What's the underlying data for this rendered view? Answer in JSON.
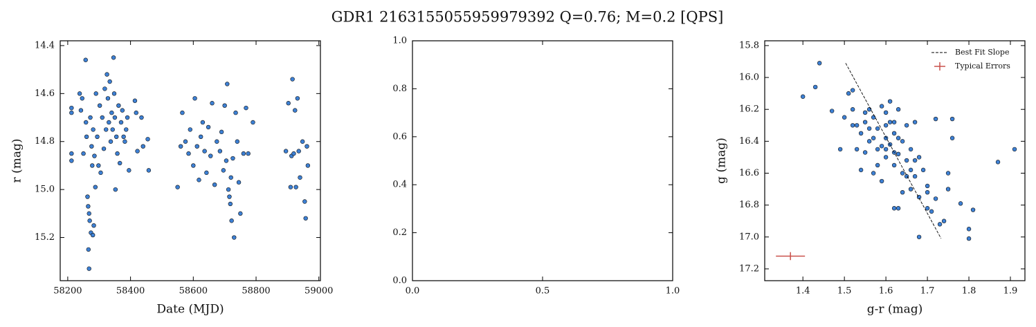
{
  "title": "GDR1 2163155055959979392  Q=0.76; M=0.2 [QPS]",
  "chart_data": [
    {
      "type": "scatter",
      "xlabel": "Date (MJD)",
      "ylabel": "r (mag)",
      "color": "#3d80d4",
      "xlim": [
        58176,
        59005
      ],
      "ylim": [
        15.38,
        14.38
      ],
      "xticks": [
        58200,
        58400,
        58600,
        58800,
        59000
      ],
      "yticks": [
        14.4,
        14.6,
        14.8,
        {
          "value": 15,
          "label": "15.0"
        },
        15.2
      ],
      "x": [
        58212,
        58212,
        58212,
        58212,
        58238,
        58242,
        58246,
        58250,
        58257,
        58258,
        58260,
        58263,
        58265,
        58266,
        58268,
        58268,
        58270,
        58272,
        58274,
        58276,
        58278,
        58280,
        58281,
        58283,
        58285,
        58288,
        58290,
        58294,
        58298,
        58302,
        58305,
        58310,
        58315,
        58318,
        58322,
        58325,
        58328,
        58331,
        58334,
        58337,
        58340,
        58343,
        58346,
        58348,
        58350,
        58352,
        58355,
        58358,
        58362,
        58366,
        58370,
        58374,
        58378,
        58382,
        58386,
        58390,
        58395,
        58414,
        58418,
        58422,
        58435,
        58440,
        58455,
        58458,
        58550,
        58560,
        58565,
        58575,
        58585,
        58590,
        58600,
        58605,
        58612,
        58618,
        58624,
        58630,
        58636,
        58642,
        58648,
        58655,
        58660,
        58668,
        58675,
        58685,
        58690,
        58696,
        58700,
        58705,
        58708,
        58712,
        58715,
        58718,
        58720,
        58722,
        58726,
        58730,
        58735,
        58740,
        58745,
        58750,
        58760,
        58768,
        58775,
        58790,
        58895,
        58903,
        58910,
        58913,
        58916,
        58920,
        58924,
        58927,
        58932,
        58936,
        58940,
        58948,
        58955,
        58958,
        58962,
        58965
      ],
      "values": [
        14.66,
        14.68,
        14.85,
        14.88,
        14.6,
        14.67,
        14.62,
        14.85,
        14.46,
        14.72,
        14.78,
        15.03,
        15.07,
        15.25,
        15.33,
        15.1,
        15.13,
        14.7,
        15.18,
        14.82,
        14.9,
        15.19,
        14.75,
        15.15,
        14.86,
        14.99,
        14.6,
        14.78,
        14.9,
        14.65,
        14.93,
        14.7,
        14.83,
        14.58,
        14.75,
        14.52,
        14.62,
        14.72,
        14.55,
        14.8,
        14.68,
        14.75,
        14.45,
        14.6,
        14.7,
        15.0,
        14.78,
        14.85,
        14.65,
        14.89,
        14.72,
        14.67,
        14.78,
        14.8,
        14.75,
        14.7,
        14.92,
        14.63,
        14.68,
        14.84,
        14.7,
        14.82,
        14.79,
        14.92,
        14.99,
        14.82,
        14.68,
        14.8,
        14.85,
        14.75,
        14.9,
        14.62,
        14.82,
        14.96,
        14.78,
        14.72,
        14.84,
        14.93,
        14.74,
        14.86,
        14.64,
        14.98,
        14.8,
        14.84,
        14.76,
        14.92,
        14.65,
        14.88,
        14.56,
        15.0,
        15.03,
        15.06,
        14.95,
        15.13,
        14.87,
        15.2,
        14.68,
        14.8,
        14.97,
        15.1,
        14.85,
        14.66,
        14.85,
        14.72,
        14.84,
        14.64,
        14.99,
        14.86,
        14.54,
        14.85,
        14.67,
        14.99,
        14.62,
        14.84,
        14.95,
        14.8,
        15.05,
        15.12,
        14.82,
        14.9
      ]
    },
    {
      "type": "scatter",
      "xlim": [
        0,
        1
      ],
      "ylim": [
        0,
        1
      ],
      "xticks": [
        {
          "value": 0,
          "label": "0.0"
        },
        0.5,
        {
          "value": 1,
          "label": "1.0"
        }
      ],
      "yticks": [
        {
          "value": 0,
          "label": "0.0"
        },
        0.2,
        0.4,
        0.6,
        0.8,
        {
          "value": 1,
          "label": "1.0"
        }
      ]
    },
    {
      "type": "scatter",
      "xlabel": "g-r (mag)",
      "ylabel": "g (mag)",
      "color": "#3d80d4",
      "xlim": [
        1.308,
        1.935
      ],
      "ylim": [
        17.274,
        15.77
      ],
      "xticks": [
        1.4,
        1.5,
        1.6,
        1.7,
        1.8,
        1.9
      ],
      "yticks": [
        15.8,
        {
          "value": 16,
          "label": "16.0"
        },
        16.2,
        16.4,
        16.6,
        16.8,
        {
          "value": 17,
          "label": "17.0"
        },
        17.2
      ],
      "legend": "upper right",
      "x": [
        1.44,
        1.4,
        1.43,
        1.47,
        1.49,
        1.51,
        1.52,
        1.5,
        1.52,
        1.53,
        1.54,
        1.55,
        1.56,
        1.56,
        1.57,
        1.58,
        1.58,
        1.59,
        1.6,
        1.6,
        1.6,
        1.61,
        1.61,
        1.62,
        1.62,
        1.63,
        1.63,
        1.64,
        1.64,
        1.65,
        1.65,
        1.66,
        1.66,
        1.67,
        1.67,
        1.68,
        1.68,
        1.69,
        1.7,
        1.7,
        1.71,
        1.72,
        1.72,
        1.73,
        1.74,
        1.75,
        1.75,
        1.76,
        1.76,
        1.78,
        1.8,
        1.8,
        1.81,
        1.87,
        1.91,
        1.68,
        1.63,
        1.57,
        1.55,
        1.54,
        1.62,
        1.59,
        1.58,
        1.56,
        1.53,
        1.6,
        1.62,
        1.65,
        1.64,
        1.7,
        1.61,
        1.63,
        1.66,
        1.59,
        1.57,
        1.55,
        1.52,
        1.6,
        1.62,
        1.67
      ],
      "values": [
        15.91,
        16.12,
        16.06,
        16.21,
        16.45,
        16.1,
        16.08,
        16.25,
        16.2,
        16.3,
        16.35,
        16.28,
        16.2,
        16.4,
        16.25,
        16.32,
        16.45,
        16.18,
        16.3,
        16.38,
        16.5,
        16.28,
        16.42,
        16.35,
        16.55,
        16.2,
        16.48,
        16.4,
        16.6,
        16.3,
        16.52,
        16.45,
        16.7,
        16.28,
        16.62,
        16.5,
        16.75,
        16.58,
        16.82,
        16.68,
        16.84,
        16.26,
        16.76,
        16.92,
        16.9,
        16.6,
        16.7,
        16.26,
        16.38,
        16.79,
        16.95,
        17.01,
        16.83,
        16.53,
        16.45,
        17.0,
        16.82,
        16.6,
        16.47,
        16.58,
        16.82,
        16.65,
        16.55,
        16.32,
        16.45,
        16.22,
        16.28,
        16.62,
        16.72,
        16.72,
        16.15,
        16.38,
        16.58,
        16.43,
        16.38,
        16.22,
        16.3,
        16.45,
        16.47,
        16.52
      ],
      "fit": {
        "name": "Best Fit Slope",
        "color": "#000000",
        "x": [
          1.503,
          1.733
        ],
        "values": [
          15.91,
          17.01
        ]
      },
      "errors": {
        "name": "Typical Errors",
        "color": "#c9504a",
        "x": 1.37,
        "value": 17.12,
        "xerr": 0.035,
        "yerr": 0.025
      }
    }
  ]
}
